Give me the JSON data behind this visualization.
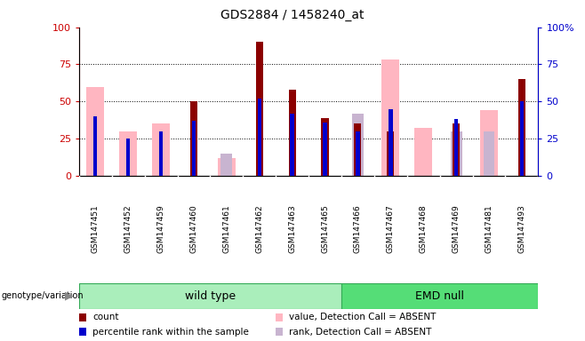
{
  "title": "GDS2884 / 1458240_at",
  "samples": [
    "GSM147451",
    "GSM147452",
    "GSM147459",
    "GSM147460",
    "GSM147461",
    "GSM147462",
    "GSM147463",
    "GSM147465",
    "GSM147466",
    "GSM147467",
    "GSM147468",
    "GSM147469",
    "GSM147481",
    "GSM147493"
  ],
  "count": [
    0,
    0,
    0,
    50,
    0,
    90,
    58,
    39,
    35,
    30,
    0,
    35,
    0,
    65
  ],
  "percentile_rank": [
    40,
    25,
    30,
    37,
    0,
    52,
    42,
    36,
    30,
    45,
    0,
    38,
    0,
    50
  ],
  "value_absent": [
    60,
    30,
    35,
    0,
    12,
    0,
    0,
    0,
    0,
    78,
    32,
    0,
    44,
    0
  ],
  "rank_absent": [
    0,
    0,
    0,
    0,
    15,
    0,
    0,
    0,
    42,
    0,
    0,
    30,
    30,
    0
  ],
  "wt_count": 8,
  "emd_count": 6,
  "color_count": "#8B0000",
  "color_percentile": "#0000CC",
  "color_value_absent": "#FFB6C1",
  "color_rank_absent": "#C8B4D0",
  "color_wt_bg": "#AAEEBB",
  "color_emd_bg": "#55DD77",
  "color_sample_bg": "#D3D3D3",
  "color_left_axis": "#CC0000",
  "color_right_axis": "#0000CC"
}
